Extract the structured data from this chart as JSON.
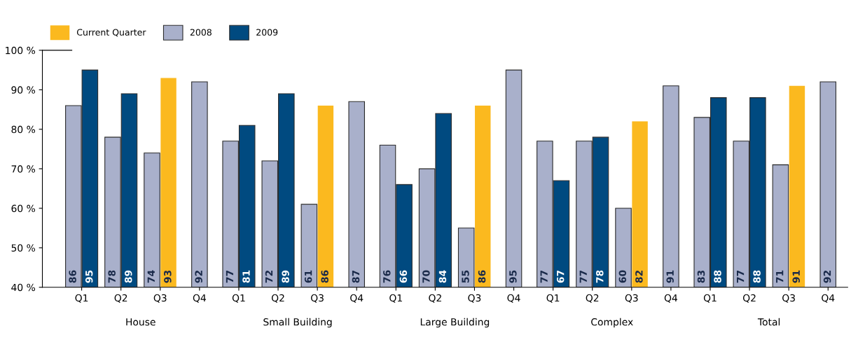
{
  "chart_data": {
    "type": "bar",
    "categories": [
      "Q1",
      "Q2",
      "Q3",
      "Q4",
      "Q1",
      "Q2",
      "Q3",
      "Q4",
      "Q1",
      "Q2",
      "Q3",
      "Q4",
      "Q1",
      "Q2",
      "Q3",
      "Q4",
      "Q1",
      "Q2",
      "Q3",
      "Q4"
    ],
    "series": [
      {
        "name": "2008",
        "color": "#a9b0cb",
        "values": [
          86,
          78,
          74,
          92,
          77,
          72,
          61,
          87,
          76,
          70,
          55,
          95,
          77,
          77,
          60,
          91,
          83,
          77,
          71,
          92
        ]
      },
      {
        "name": "2009",
        "color": "#004a80",
        "values": [
          95,
          89,
          null,
          null,
          81,
          89,
          null,
          null,
          66,
          84,
          null,
          null,
          67,
          78,
          null,
          null,
          88,
          88,
          null,
          null
        ]
      },
      {
        "name": "Current Quarter",
        "color": "#fbb91f",
        "values": [
          null,
          null,
          93,
          null,
          null,
          null,
          86,
          null,
          null,
          null,
          86,
          null,
          null,
          null,
          82,
          null,
          null,
          null,
          91,
          null
        ]
      }
    ],
    "annotations": [
      "House",
      "Small Building",
      "Large Building",
      "Complex",
      "Total"
    ],
    "ylim": [
      40,
      100
    ],
    "yticks": [
      {
        "value": 40,
        "label": "40 %"
      },
      {
        "value": 50,
        "label": "50 %"
      },
      {
        "value": 60,
        "label": "60 %"
      },
      {
        "value": 70,
        "label": "70 %"
      },
      {
        "value": 80,
        "label": "80 %"
      },
      {
        "value": 90,
        "label": "90 %"
      },
      {
        "value": 100,
        "label": "100 %"
      }
    ],
    "data_labels": true,
    "grid": false,
    "legend": "top left"
  }
}
